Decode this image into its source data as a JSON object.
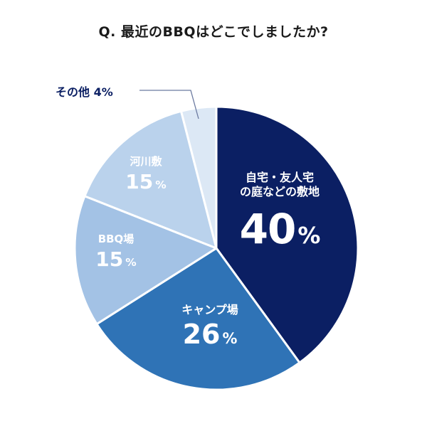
{
  "chart_data": {
    "type": "pie",
    "title": "Q. 最近のBBQはどこでしましたか?",
    "start_angle": "top, clockwise",
    "categories": [
      "自宅・友人宅の庭などの敷地",
      "キャンプ場",
      "BBQ場",
      "河川敷",
      "その他"
    ],
    "values": [
      40,
      26,
      15,
      15,
      4
    ],
    "unit": "%",
    "colors": [
      "#0b1f63",
      "#2f73b6",
      "#a3c2e5",
      "#bad2ec",
      "#dce8f5"
    ]
  },
  "title": "Q. 最近のBBQはどこでしましたか?",
  "labels": {
    "home_line1": "自宅・友人宅",
    "home_line2": "の庭などの敷地",
    "home_pct": "40",
    "camp_name": "キャンプ場",
    "camp_pct": "26",
    "bbq_name": "BBQ場",
    "bbq_pct": "15",
    "river_name": "河川敷",
    "river_pct": "15",
    "other": "その他 4%",
    "pct_sign": "%"
  }
}
